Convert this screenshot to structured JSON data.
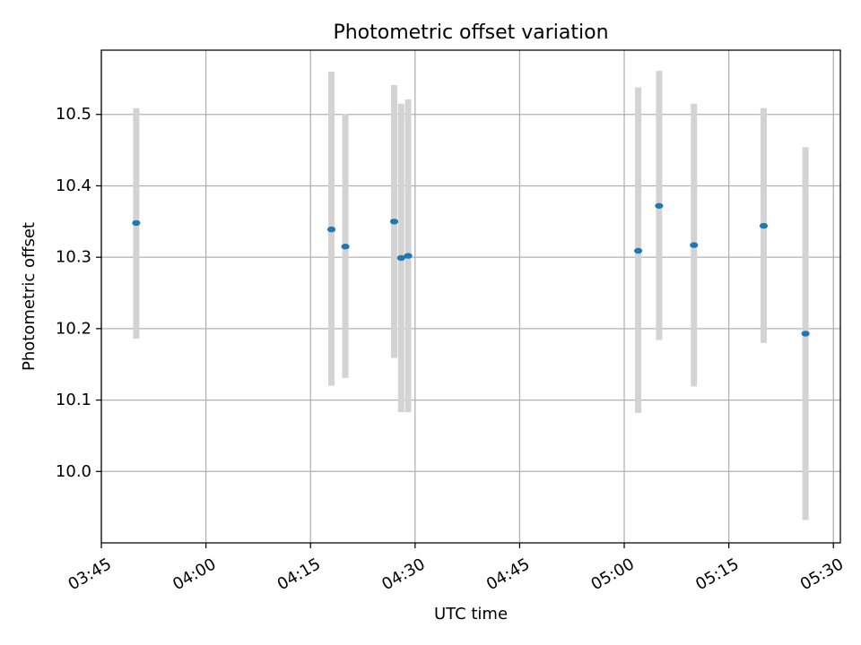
{
  "chart_data": {
    "type": "scatter",
    "title": "Photometric offset variation",
    "xlabel": "UTC time",
    "ylabel": "Photometric offset",
    "x_axis_type": "time",
    "xlim": [
      "03:45",
      "05:31"
    ],
    "ylim": [
      9.9,
      10.59
    ],
    "xticks": [
      "03:45",
      "04:00",
      "04:15",
      "04:30",
      "04:45",
      "05:00",
      "05:15",
      "05:30"
    ],
    "yticks": [
      10.0,
      10.1,
      10.2,
      10.3,
      10.4,
      10.5
    ],
    "yticklabels": [
      "10.0",
      "10.1",
      "10.2",
      "10.3",
      "10.4",
      "10.5"
    ],
    "grid": true,
    "legend": "none",
    "marker_color": "#1f77b4",
    "errorbar_color": "#d3d3d3",
    "points": [
      {
        "x": "03:50",
        "y": 10.348,
        "ylow": 10.186,
        "yhigh": 10.509
      },
      {
        "x": "04:18",
        "y": 10.339,
        "ylow": 10.12,
        "yhigh": 10.56
      },
      {
        "x": "04:20",
        "y": 10.315,
        "ylow": 10.131,
        "yhigh": 10.501
      },
      {
        "x": "04:27",
        "y": 10.35,
        "ylow": 10.159,
        "yhigh": 10.541
      },
      {
        "x": "04:28",
        "y": 10.299,
        "ylow": 10.083,
        "yhigh": 10.515
      },
      {
        "x": "04:29",
        "y": 10.302,
        "ylow": 10.083,
        "yhigh": 10.521
      },
      {
        "x": "05:02",
        "y": 10.309,
        "ylow": 10.082,
        "yhigh": 10.538
      },
      {
        "x": "05:05",
        "y": 10.372,
        "ylow": 10.184,
        "yhigh": 10.561
      },
      {
        "x": "05:10",
        "y": 10.317,
        "ylow": 10.119,
        "yhigh": 10.515
      },
      {
        "x": "05:20",
        "y": 10.344,
        "ylow": 10.18,
        "yhigh": 10.509
      },
      {
        "x": "05:26",
        "y": 10.193,
        "ylow": 9.932,
        "yhigh": 10.454
      }
    ]
  }
}
